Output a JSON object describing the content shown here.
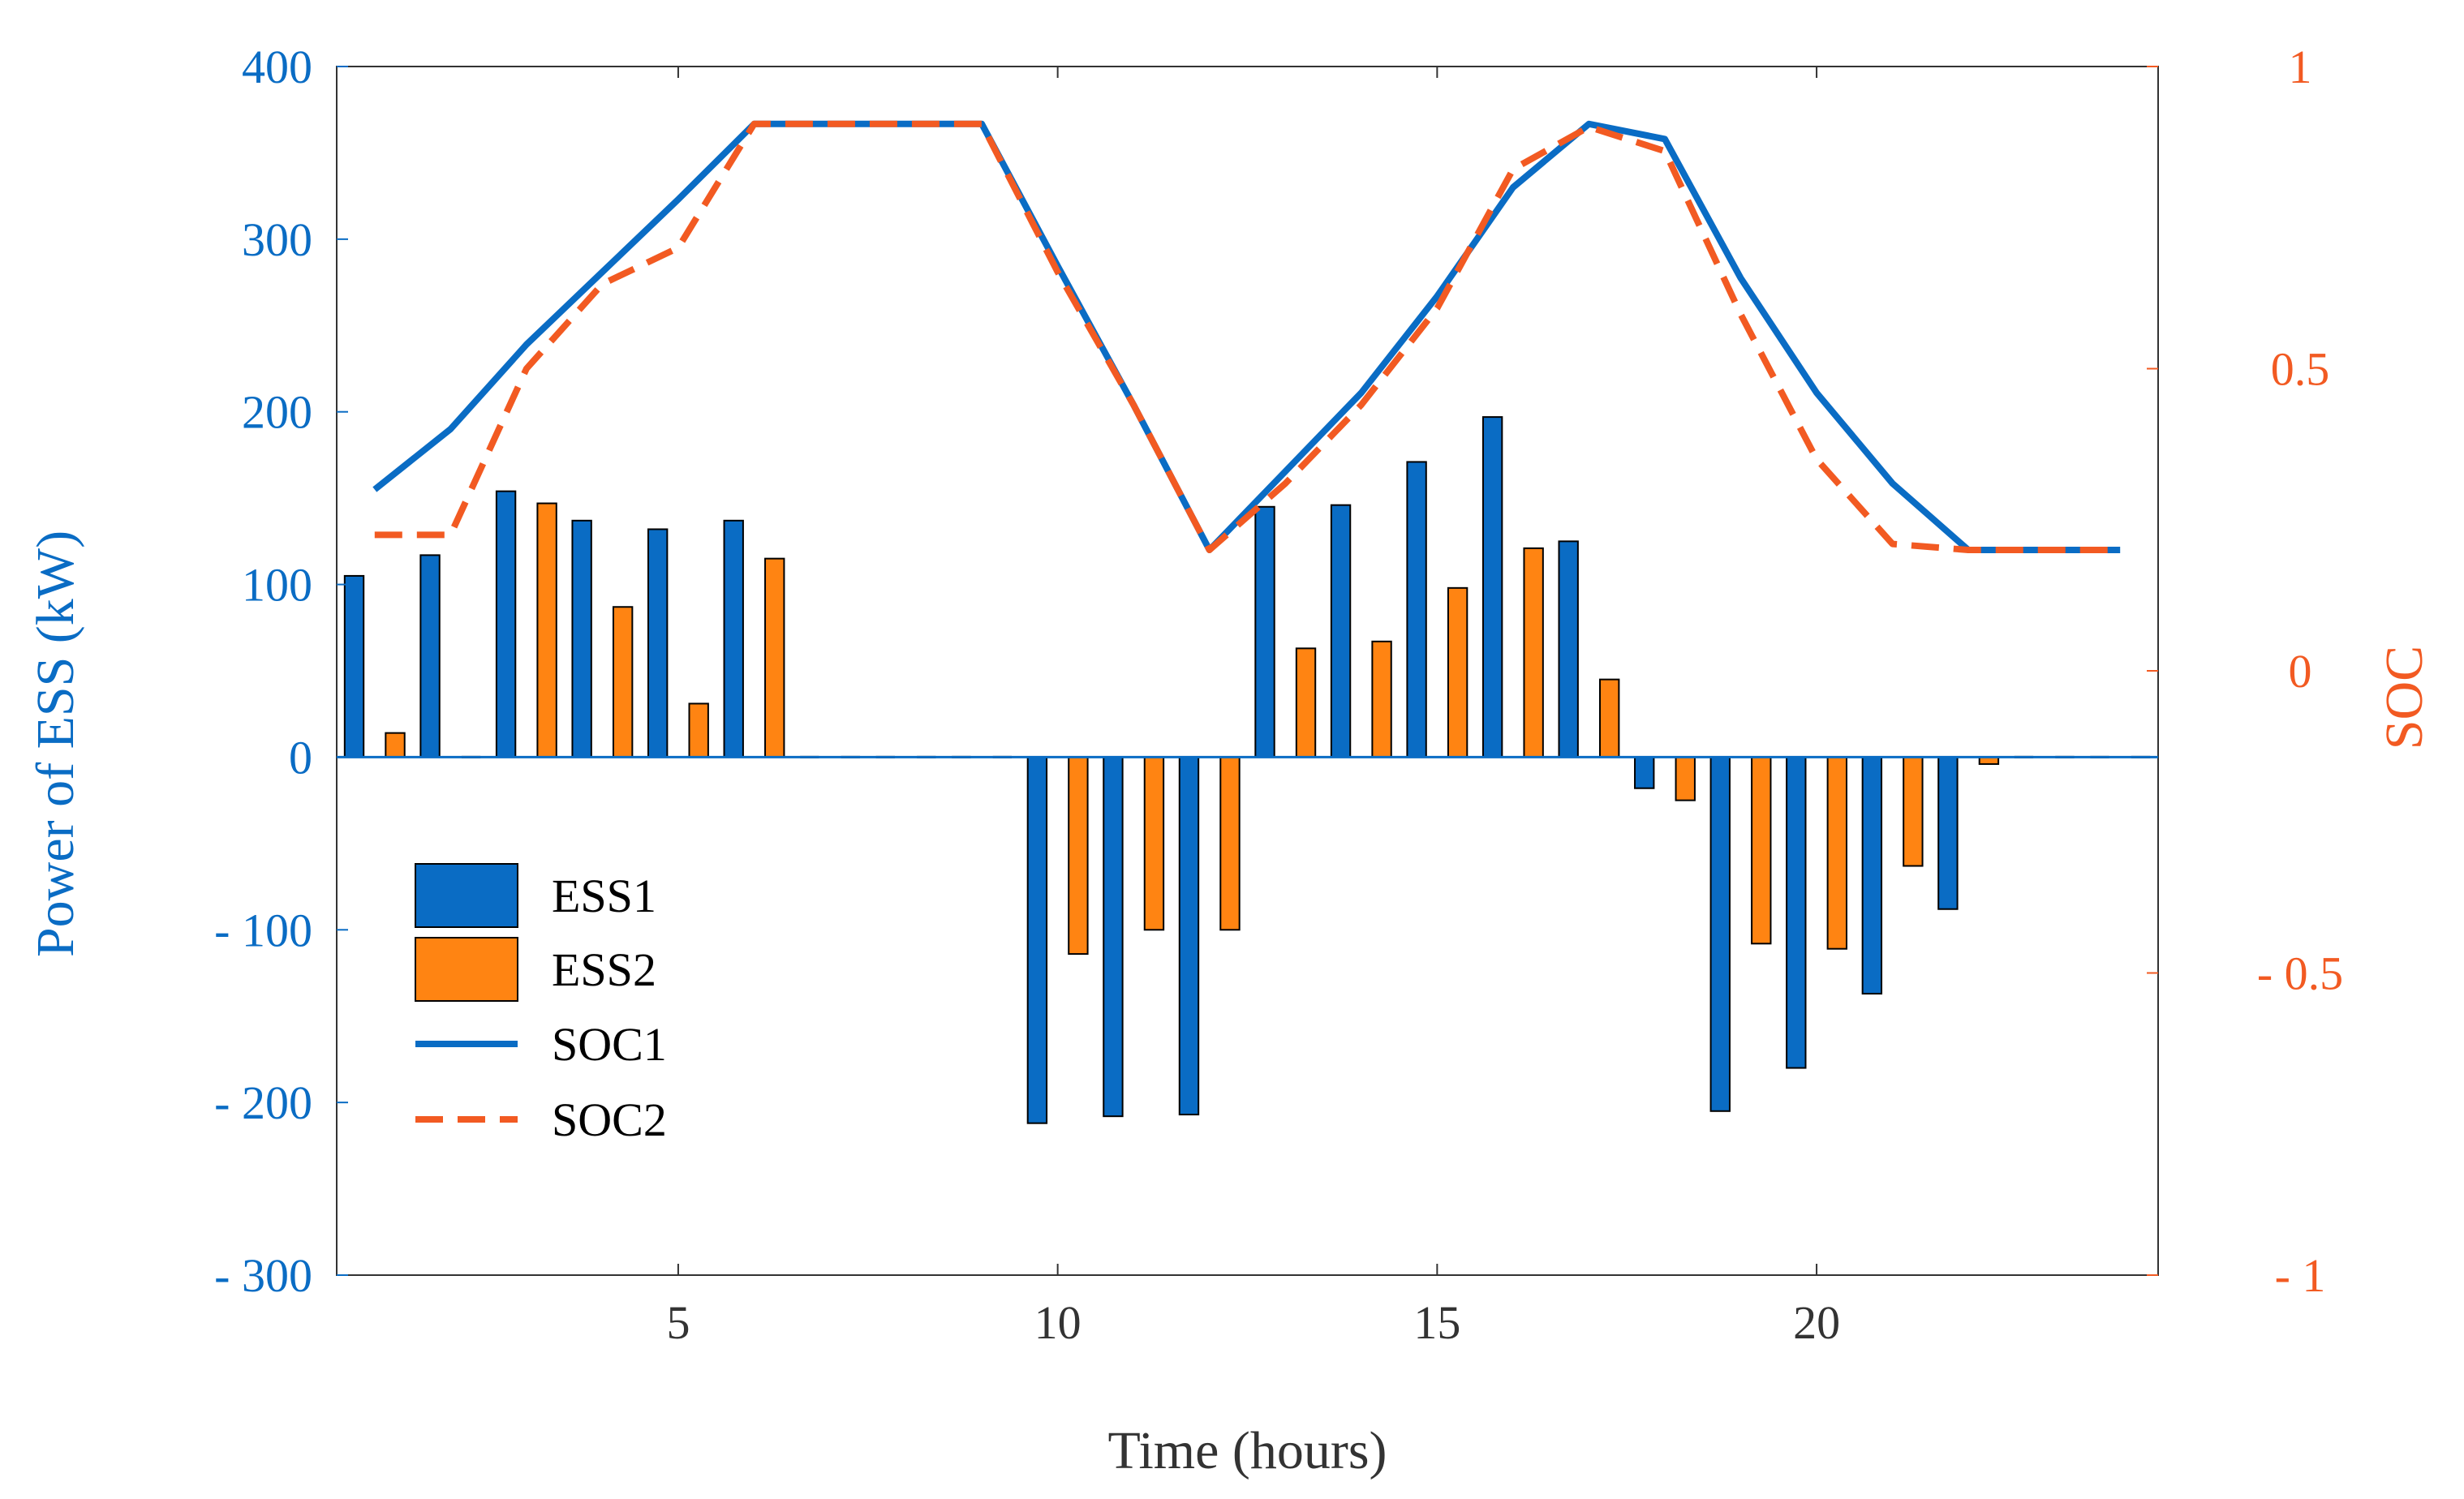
{
  "chart_data": {
    "type": "bar",
    "title": "",
    "xlabel": "Time (hours)",
    "ylabel_left": "Power of ESS (kW)",
    "ylabel_right": "SOC",
    "xlim": [
      0.5,
      24.5
    ],
    "ylim_left": [
      -300,
      400
    ],
    "ylim_right": [
      -1,
      1
    ],
    "x_ticks": [
      5,
      10,
      15,
      20
    ],
    "x_tick_labels": [
      "5",
      "10",
      "15",
      "20"
    ],
    "y_left_ticks": [
      -300,
      -200,
      -100,
      0,
      100,
      200,
      300,
      400
    ],
    "y_left_tick_labels": [
      "- 300",
      "- 200",
      "- 100",
      "0",
      "100",
      "200",
      "300",
      "400"
    ],
    "y_right_ticks": [
      -1,
      -0.5,
      0,
      0.5,
      1
    ],
    "y_right_tick_labels": [
      "- 1",
      "- 0.5",
      "0",
      "0.5",
      "1"
    ],
    "grid": false,
    "legend_position": "left-middle",
    "hours": [
      1,
      2,
      3,
      4,
      5,
      6,
      7,
      8,
      9,
      10,
      11,
      12,
      13,
      14,
      15,
      16,
      17,
      18,
      19,
      20,
      21,
      22,
      23,
      24
    ],
    "bar_series": [
      {
        "name": "ESS1",
        "color": "#0a6cc4",
        "values": [
          105,
          117,
          154,
          137,
          132,
          137,
          0,
          0,
          0,
          -212,
          -208,
          -207,
          145,
          146,
          171,
          197,
          125,
          -18,
          -205,
          -180,
          -137,
          -88,
          0,
          0
        ]
      },
      {
        "name": "ESS2",
        "color": "#ff8412",
        "values": [
          14,
          0,
          147,
          87,
          31,
          115,
          0,
          0,
          0,
          -114,
          -100,
          -100,
          63,
          67,
          98,
          121,
          45,
          -25,
          -108,
          -111,
          -63,
          -4,
          0,
          0
        ]
      }
    ],
    "line_series": [
      {
        "name": "SOC1",
        "color": "#0a6cc4",
        "style": "solid",
        "values": [
          0.3,
          0.4,
          0.54,
          0.66,
          0.78,
          0.905,
          0.905,
          0.905,
          0.905,
          0.67,
          0.44,
          0.2,
          0.33,
          0.46,
          0.62,
          0.8,
          0.905,
          0.88,
          0.65,
          0.46,
          0.31,
          0.2,
          0.2,
          0.2
        ]
      },
      {
        "name": "SOC2",
        "color": "#f25a22",
        "style": "dashed",
        "values": [
          0.225,
          0.225,
          0.5,
          0.64,
          0.7,
          0.905,
          0.905,
          0.905,
          0.905,
          0.66,
          0.44,
          0.2,
          0.31,
          0.44,
          0.6,
          0.83,
          0.9,
          0.86,
          0.59,
          0.35,
          0.21,
          0.2,
          0.2,
          0.2
        ]
      }
    ],
    "legend": {
      "entries": [
        "ESS1",
        "ESS2",
        "SOC1",
        "SOC2"
      ]
    },
    "colors": {
      "left_axis": "#0a6cc4",
      "right_axis": "#f25a22",
      "x_axis": "#333333",
      "bar_edge": "#000000"
    }
  }
}
